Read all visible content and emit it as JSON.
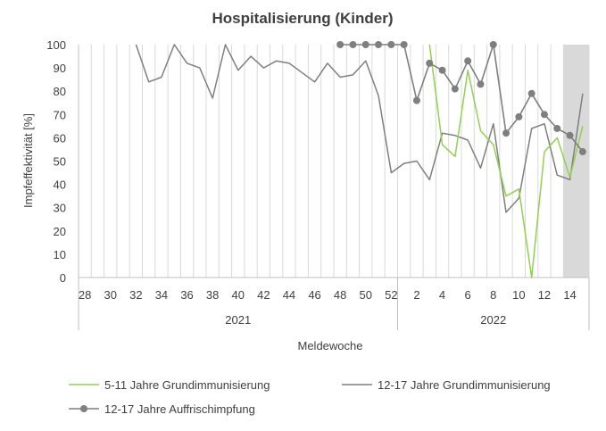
{
  "chart_data": {
    "type": "line",
    "title": "Hospitalisierung (Kinder)",
    "xlabel": "Meldewoche",
    "ylabel": "Impfeffektivität [%]",
    "ylim": [
      0,
      100
    ],
    "yticks": [
      "0",
      "10",
      "20",
      "30",
      "40",
      "50",
      "60",
      "70",
      "80",
      "90",
      "100"
    ],
    "x": [
      28,
      29,
      30,
      31,
      32,
      33,
      34,
      35,
      36,
      37,
      38,
      39,
      40,
      41,
      42,
      43,
      44,
      45,
      46,
      47,
      48,
      49,
      50,
      51,
      52,
      1,
      2,
      3,
      4,
      5,
      6,
      7,
      8,
      9,
      10,
      11,
      12,
      13,
      14,
      15
    ],
    "xtick_labels": [
      "28",
      "30",
      "32",
      "34",
      "36",
      "38",
      "40",
      "42",
      "44",
      "46",
      "48",
      "50",
      "52",
      "2",
      "4",
      "6",
      "8",
      "10",
      "12",
      "14"
    ],
    "years": [
      "2021",
      "2022"
    ],
    "shaded_weeks": "2022 KW 14-15",
    "legend_position": "bottom",
    "grid": "vertical",
    "series": [
      {
        "name": "5-11 Jahre Grundimmunisierung",
        "color": "#92d050",
        "marker": "none",
        "values": [
          null,
          null,
          null,
          null,
          null,
          null,
          null,
          null,
          null,
          null,
          null,
          null,
          null,
          null,
          null,
          null,
          null,
          null,
          null,
          null,
          null,
          null,
          null,
          null,
          null,
          null,
          null,
          100,
          57,
          52,
          89,
          63,
          57,
          35,
          38,
          0,
          54,
          60,
          43,
          65
        ]
      },
      {
        "name": "12-17 Jahre Grundimmunisierung",
        "color": "#7f7f7f",
        "marker": "none",
        "values": [
          null,
          null,
          null,
          null,
          100,
          84,
          86,
          100,
          92,
          90,
          77,
          100,
          89,
          95,
          90,
          93,
          92,
          88,
          84,
          92,
          86,
          87,
          93,
          78,
          45,
          49,
          50,
          42,
          62,
          61,
          59,
          47,
          66,
          28,
          34,
          64,
          66,
          44,
          42,
          79
        ]
      },
      {
        "name": "12-17 Jahre Auffrischimpfung",
        "color": "#7f7f7f",
        "marker": "circle",
        "values": [
          null,
          null,
          null,
          null,
          null,
          null,
          null,
          null,
          null,
          null,
          null,
          null,
          null,
          null,
          null,
          null,
          null,
          null,
          null,
          null,
          100,
          100,
          100,
          100,
          100,
          100,
          76,
          92,
          89,
          81,
          93,
          83,
          100,
          62,
          69,
          79,
          70,
          64,
          61,
          54
        ]
      }
    ]
  }
}
